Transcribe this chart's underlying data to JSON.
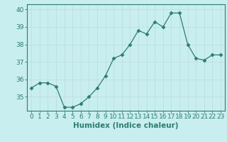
{
  "x": [
    0,
    1,
    2,
    3,
    4,
    5,
    6,
    7,
    8,
    9,
    10,
    11,
    12,
    13,
    14,
    15,
    16,
    17,
    18,
    19,
    20,
    21,
    22,
    23
  ],
  "y": [
    35.5,
    35.8,
    35.8,
    35.6,
    34.4,
    34.4,
    34.6,
    35.0,
    35.5,
    36.2,
    37.2,
    37.4,
    38.0,
    38.8,
    38.6,
    39.3,
    39.0,
    39.8,
    39.8,
    38.0,
    37.2,
    37.1,
    37.4,
    37.4
  ],
  "line_color": "#2e7d6e",
  "marker": "D",
  "marker_size": 2.5,
  "bg_color": "#c8eef0",
  "grid_color": "#c0dede",
  "axis_color": "#2e7d6e",
  "xlabel": "Humidex (Indice chaleur)",
  "ylim": [
    34.2,
    40.3
  ],
  "xlim": [
    -0.5,
    23.5
  ],
  "yticks": [
    35,
    36,
    37,
    38,
    39,
    40
  ],
  "xtick_labels": [
    "0",
    "1",
    "2",
    "3",
    "4",
    "5",
    "6",
    "7",
    "8",
    "9",
    "10",
    "11",
    "12",
    "13",
    "14",
    "15",
    "16",
    "17",
    "18",
    "19",
    "20",
    "21",
    "22",
    "23"
  ],
  "label_fontsize": 7.5,
  "tick_fontsize": 6.5
}
